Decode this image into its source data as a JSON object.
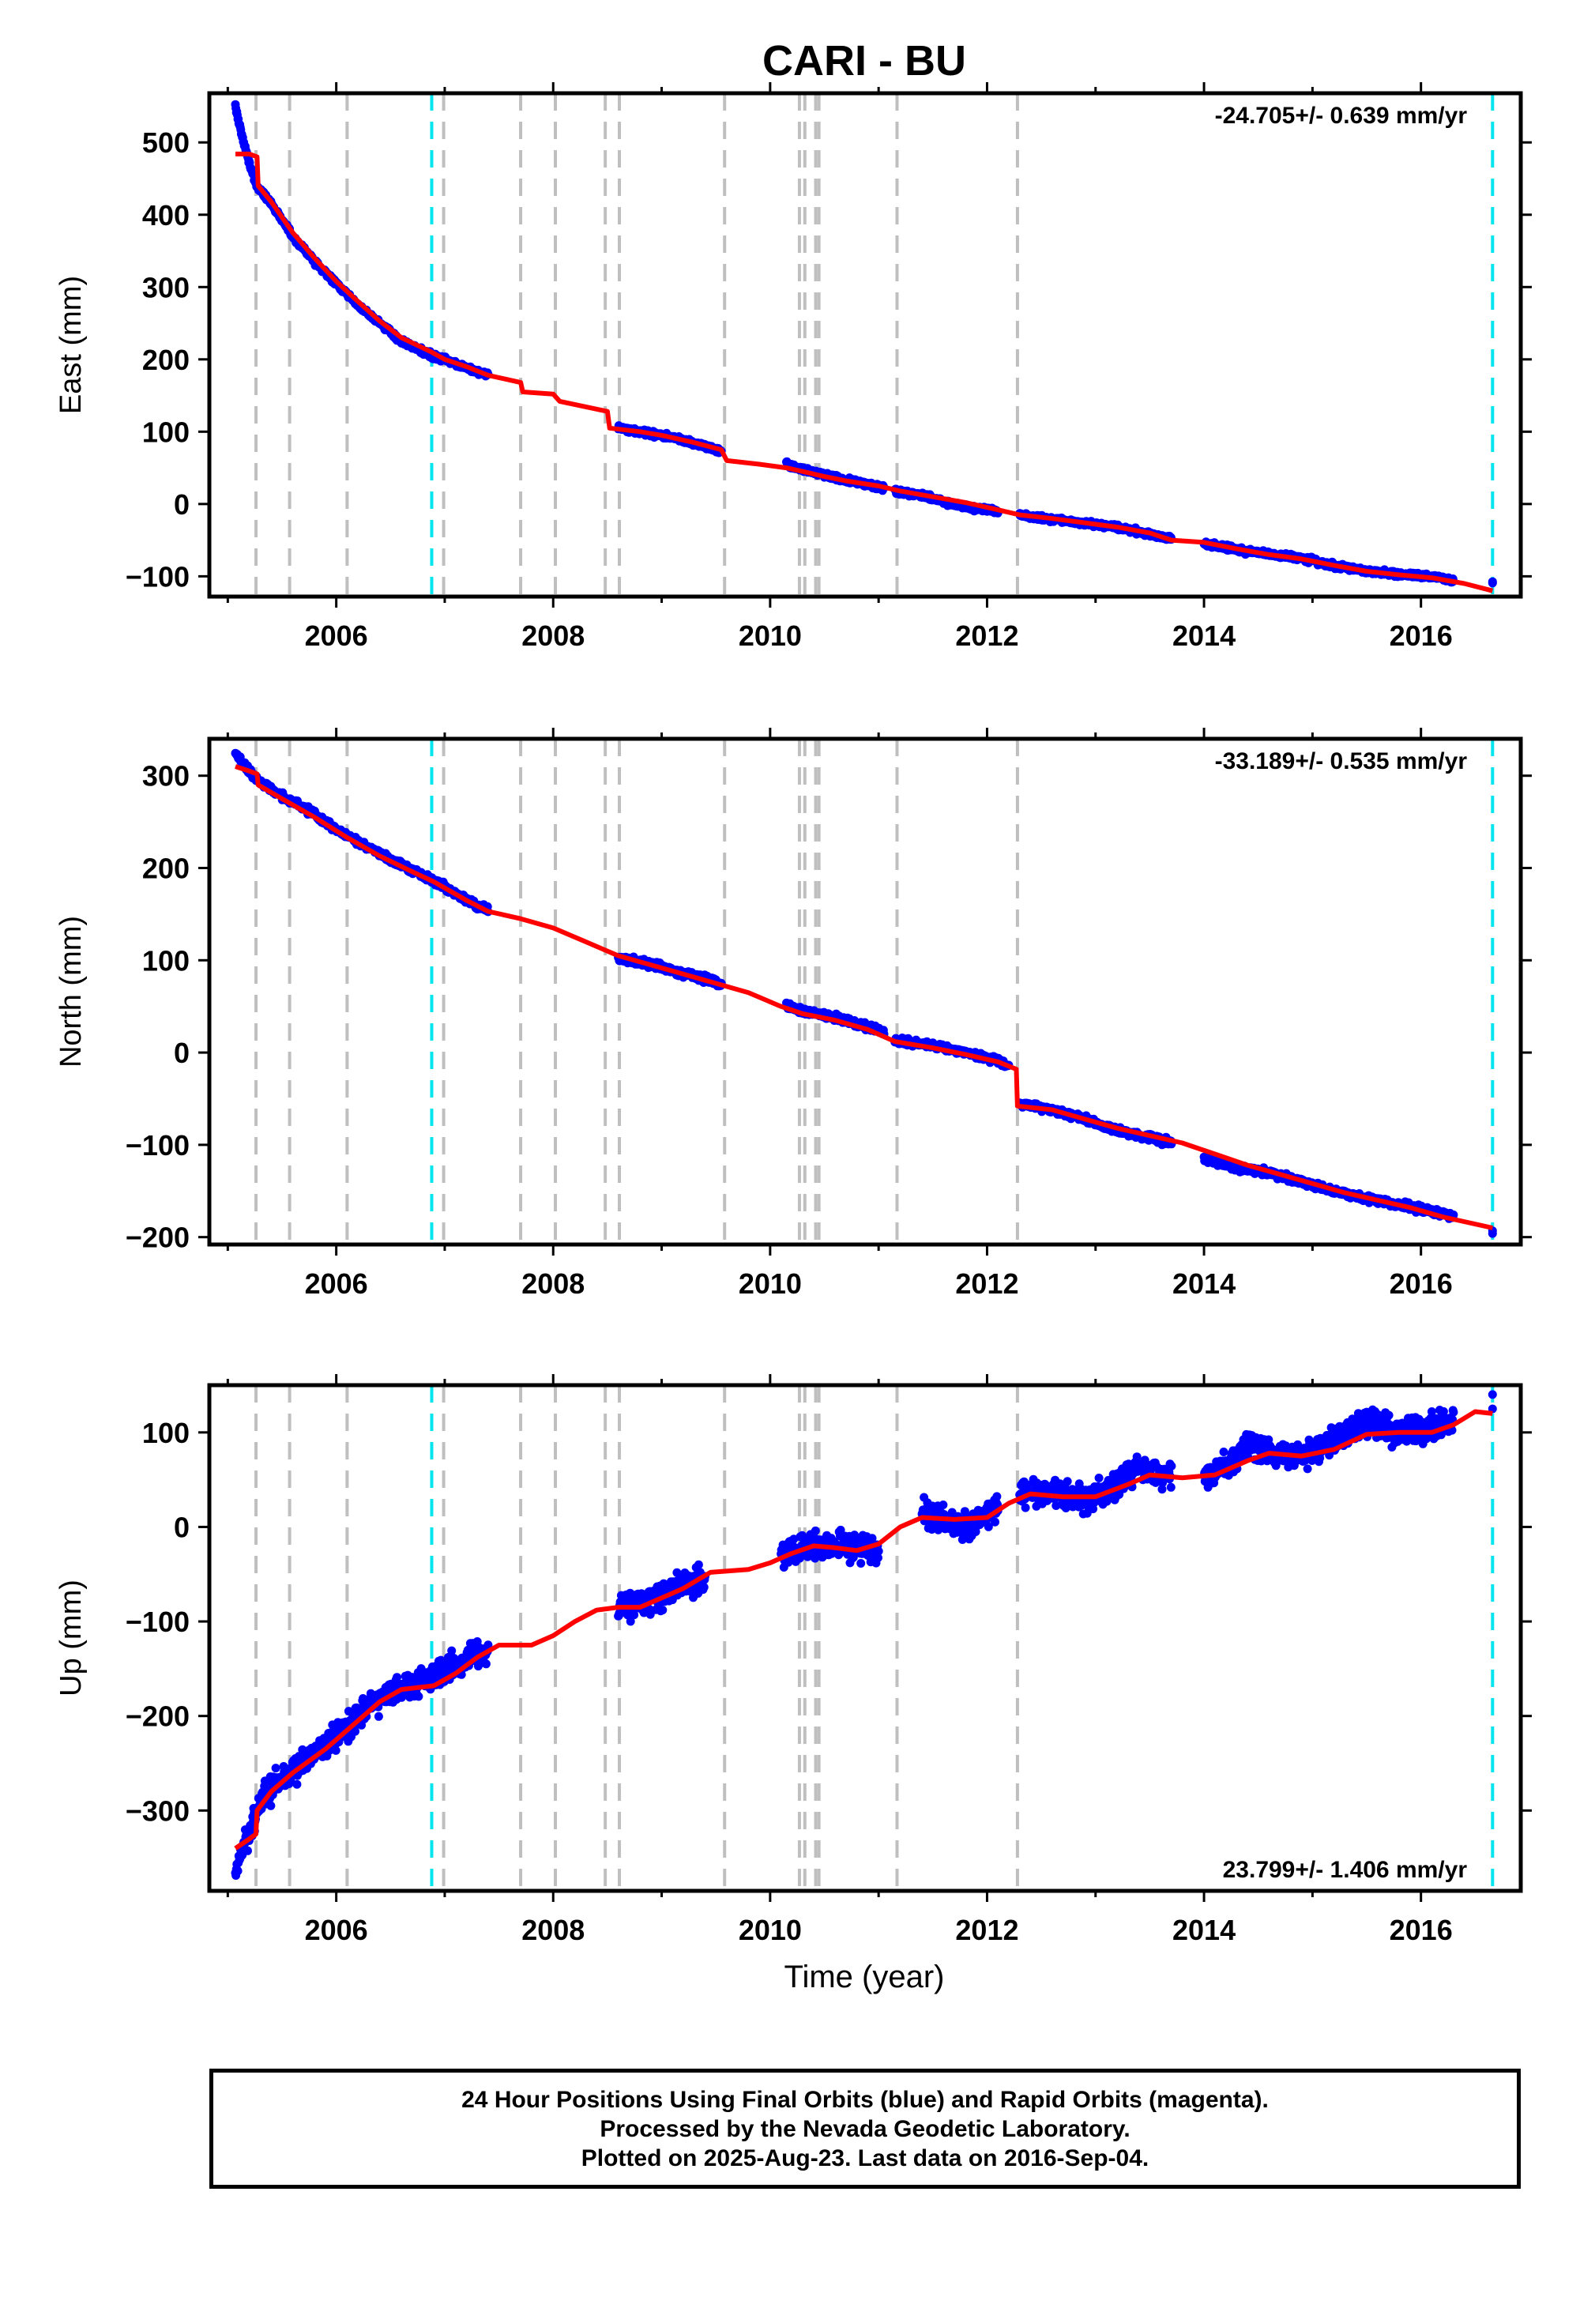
{
  "title": "CARI - BU",
  "xlabel": "Time (year)",
  "footer": {
    "line1": "24 Hour Positions Using Final Orbits (blue) and Rapid Orbits (magenta).",
    "line2": "Processed by the Nevada Geodetic Laboratory.",
    "line3": "Plotted on 2025-Aug-23. Last data on 2016-Sep-04."
  },
  "colors": {
    "data": "#0000ff",
    "model": "#ff0000",
    "event_gray": "#bfbfbf",
    "event_cyan": "#00e5ee"
  },
  "chart_data": [
    {
      "type": "scatter",
      "name": "east",
      "ylabel": "East (mm)",
      "rate_label": "-24.705+/- 0.639 mm/yr",
      "rate_position": "top-right",
      "xlim": [
        2004.83,
        2016.92
      ],
      "ylim": [
        -128,
        568
      ],
      "xticks": [
        2006,
        2008,
        2010,
        2012,
        2014,
        2016
      ],
      "yticks": [
        -100,
        0,
        100,
        200,
        300,
        400,
        500
      ],
      "data_segments": [
        [
          [
            2005.07,
            550
          ],
          [
            2005.13,
            510
          ],
          [
            2005.2,
            470
          ],
          [
            2005.27,
            440
          ],
          [
            2005.4,
            415
          ],
          [
            2005.6,
            370
          ],
          [
            2005.8,
            335
          ],
          [
            2006.0,
            305
          ],
          [
            2006.2,
            275
          ],
          [
            2006.4,
            250
          ],
          [
            2006.6,
            225
          ],
          [
            2006.8,
            210
          ],
          [
            2007.0,
            200
          ],
          [
            2007.2,
            188
          ],
          [
            2007.4,
            178
          ]
        ],
        [
          [
            2008.6,
            105
          ],
          [
            2008.8,
            100
          ],
          [
            2009.0,
            95
          ],
          [
            2009.2,
            88
          ],
          [
            2009.4,
            80
          ],
          [
            2009.55,
            72
          ]
        ],
        [
          [
            2010.15,
            55
          ],
          [
            2010.3,
            48
          ],
          [
            2010.5,
            40
          ],
          [
            2010.7,
            33
          ],
          [
            2010.9,
            27
          ],
          [
            2011.05,
            22
          ]
        ],
        [
          [
            2011.15,
            18
          ],
          [
            2011.4,
            12
          ],
          [
            2011.6,
            3
          ],
          [
            2011.85,
            -5
          ],
          [
            2012.1,
            -10
          ]
        ],
        [
          [
            2012.3,
            -15
          ],
          [
            2012.5,
            -20
          ],
          [
            2012.8,
            -25
          ],
          [
            2013.1,
            -30
          ],
          [
            2013.4,
            -38
          ],
          [
            2013.7,
            -48
          ]
        ],
        [
          [
            2014.0,
            -55
          ],
          [
            2014.3,
            -63
          ],
          [
            2014.6,
            -70
          ],
          [
            2014.9,
            -75
          ],
          [
            2015.2,
            -85
          ],
          [
            2015.5,
            -93
          ],
          [
            2015.8,
            -97
          ],
          [
            2016.1,
            -100
          ],
          [
            2016.3,
            -107
          ]
        ],
        [
          [
            2016.66,
            -110
          ]
        ]
      ],
      "model": [
        [
          2005.07,
          484
        ],
        [
          2005.2,
          484
        ],
        [
          2005.27,
          480
        ],
        [
          2005.28,
          440
        ],
        [
          2005.4,
          418
        ],
        [
          2005.6,
          375
        ],
        [
          2005.8,
          340
        ],
        [
          2006.0,
          308
        ],
        [
          2006.2,
          280
        ],
        [
          2006.4,
          253
        ],
        [
          2006.6,
          230
        ],
        [
          2006.88,
          210
        ],
        [
          2007.0,
          200
        ],
        [
          2007.2,
          190
        ],
        [
          2007.4,
          178
        ],
        [
          2007.7,
          168
        ],
        [
          2007.72,
          155
        ],
        [
          2008.0,
          152
        ],
        [
          2008.06,
          142
        ],
        [
          2008.5,
          128
        ],
        [
          2008.52,
          105
        ],
        [
          2008.8,
          100
        ],
        [
          2009.0,
          95
        ],
        [
          2009.3,
          85
        ],
        [
          2009.55,
          75
        ],
        [
          2009.6,
          60
        ],
        [
          2009.9,
          55
        ],
        [
          2010.15,
          50
        ],
        [
          2010.3,
          45
        ],
        [
          2010.5,
          38
        ],
        [
          2010.7,
          32
        ],
        [
          2011.0,
          25
        ],
        [
          2011.2,
          18
        ],
        [
          2011.5,
          10
        ],
        [
          2011.8,
          2
        ],
        [
          2012.1,
          -8
        ],
        [
          2012.3,
          -15
        ],
        [
          2012.6,
          -20
        ],
        [
          2012.9,
          -26
        ],
        [
          2013.2,
          -32
        ],
        [
          2013.5,
          -40
        ],
        [
          2013.7,
          -50
        ],
        [
          2014.0,
          -53
        ],
        [
          2014.3,
          -62
        ],
        [
          2014.6,
          -70
        ],
        [
          2014.9,
          -76
        ],
        [
          2015.2,
          -85
        ],
        [
          2015.5,
          -93
        ],
        [
          2015.8,
          -98
        ],
        [
          2016.1,
          -102
        ],
        [
          2016.4,
          -110
        ],
        [
          2016.66,
          -120
        ]
      ]
    },
    {
      "type": "scatter",
      "name": "north",
      "ylabel": "North (mm)",
      "rate_label": "-33.189+/- 0.535 mm/yr",
      "rate_position": "top-right",
      "xlim": [
        2004.83,
        2016.92
      ],
      "ylim": [
        -208,
        340
      ],
      "xticks": [
        2006,
        2008,
        2010,
        2012,
        2014,
        2016
      ],
      "yticks": [
        -200,
        -100,
        0,
        100,
        200,
        300
      ],
      "data_segments": [
        [
          [
            2005.07,
            325
          ],
          [
            2005.13,
            315
          ],
          [
            2005.27,
            295
          ],
          [
            2005.5,
            278
          ],
          [
            2005.8,
            258
          ],
          [
            2006.1,
            235
          ],
          [
            2006.4,
            215
          ],
          [
            2006.7,
            198
          ],
          [
            2007.0,
            180
          ],
          [
            2007.2,
            165
          ],
          [
            2007.4,
            155
          ]
        ],
        [
          [
            2008.6,
            103
          ],
          [
            2008.8,
            98
          ],
          [
            2009.0,
            92
          ],
          [
            2009.3,
            83
          ],
          [
            2009.55,
            75
          ]
        ],
        [
          [
            2010.15,
            52
          ],
          [
            2010.3,
            45
          ],
          [
            2010.6,
            38
          ],
          [
            2010.9,
            28
          ],
          [
            2011.05,
            22
          ]
        ],
        [
          [
            2011.15,
            12
          ],
          [
            2011.5,
            8
          ],
          [
            2011.8,
            0
          ],
          [
            2012.1,
            -8
          ],
          [
            2012.2,
            -15
          ]
        ],
        [
          [
            2012.3,
            -55
          ],
          [
            2012.6,
            -62
          ],
          [
            2012.9,
            -72
          ],
          [
            2013.2,
            -85
          ],
          [
            2013.5,
            -92
          ],
          [
            2013.7,
            -98
          ]
        ],
        [
          [
            2014.0,
            -115
          ],
          [
            2014.3,
            -125
          ],
          [
            2014.6,
            -130
          ],
          [
            2014.9,
            -140
          ],
          [
            2015.2,
            -150
          ],
          [
            2015.5,
            -158
          ],
          [
            2015.8,
            -165
          ],
          [
            2016.1,
            -172
          ],
          [
            2016.3,
            -178
          ]
        ],
        [
          [
            2016.66,
            -195
          ]
        ]
      ],
      "model": [
        [
          2005.07,
          310
        ],
        [
          2005.2,
          305
        ],
        [
          2005.27,
          302
        ],
        [
          2005.28,
          290
        ],
        [
          2005.5,
          275
        ],
        [
          2005.8,
          255
        ],
        [
          2006.1,
          233
        ],
        [
          2006.4,
          213
        ],
        [
          2006.7,
          196
        ],
        [
          2006.9,
          185
        ],
        [
          2007.2,
          165
        ],
        [
          2007.4,
          153
        ],
        [
          2007.7,
          145
        ],
        [
          2008.0,
          135
        ],
        [
          2008.3,
          120
        ],
        [
          2008.6,
          105
        ],
        [
          2008.9,
          95
        ],
        [
          2009.2,
          85
        ],
        [
          2009.5,
          75
        ],
        [
          2009.8,
          65
        ],
        [
          2010.1,
          50
        ],
        [
          2010.3,
          42
        ],
        [
          2010.6,
          35
        ],
        [
          2010.9,
          25
        ],
        [
          2011.15,
          12
        ],
        [
          2011.5,
          5
        ],
        [
          2011.8,
          -2
        ],
        [
          2012.1,
          -10
        ],
        [
          2012.27,
          -18
        ],
        [
          2012.28,
          -58
        ],
        [
          2012.6,
          -62
        ],
        [
          2012.9,
          -72
        ],
        [
          2013.2,
          -82
        ],
        [
          2013.5,
          -90
        ],
        [
          2013.8,
          -98
        ],
        [
          2014.1,
          -110
        ],
        [
          2014.4,
          -122
        ],
        [
          2014.7,
          -132
        ],
        [
          2015.0,
          -142
        ],
        [
          2015.3,
          -152
        ],
        [
          2015.6,
          -160
        ],
        [
          2015.9,
          -168
        ],
        [
          2016.2,
          -178
        ],
        [
          2016.66,
          -190
        ]
      ]
    },
    {
      "type": "scatter",
      "name": "up",
      "ylabel": "Up (mm)",
      "rate_label": "23.799+/- 1.406 mm/yr",
      "rate_position": "bottom-right",
      "xlim": [
        2004.83,
        2016.92
      ],
      "ylim": [
        -385,
        150
      ],
      "xticks": [
        2006,
        2008,
        2010,
        2012,
        2014,
        2016
      ],
      "yticks": [
        -300,
        -200,
        -100,
        0,
        100
      ],
      "data_segments": [
        [
          [
            2005.07,
            -365
          ],
          [
            2005.13,
            -340
          ],
          [
            2005.2,
            -320
          ],
          [
            2005.3,
            -290
          ],
          [
            2005.5,
            -265
          ],
          [
            2005.8,
            -240
          ],
          [
            2006.1,
            -210
          ],
          [
            2006.4,
            -180
          ],
          [
            2006.7,
            -165
          ],
          [
            2007.0,
            -155
          ],
          [
            2007.2,
            -140
          ],
          [
            2007.4,
            -128
          ]
        ],
        [
          [
            2008.6,
            -85
          ],
          [
            2008.8,
            -82
          ],
          [
            2009.0,
            -75
          ],
          [
            2009.2,
            -60
          ],
          [
            2009.4,
            -52
          ]
        ],
        [
          [
            2010.1,
            -30
          ],
          [
            2010.3,
            -22
          ],
          [
            2010.5,
            -18
          ],
          [
            2010.7,
            -20
          ],
          [
            2010.9,
            -22
          ],
          [
            2011.0,
            -25
          ]
        ],
        [
          [
            2011.4,
            12
          ],
          [
            2011.6,
            10
          ],
          [
            2011.8,
            0
          ],
          [
            2012.0,
            12
          ],
          [
            2012.1,
            20
          ]
        ],
        [
          [
            2012.3,
            38
          ],
          [
            2012.6,
            35
          ],
          [
            2012.9,
            30
          ],
          [
            2013.2,
            45
          ],
          [
            2013.4,
            65
          ],
          [
            2013.7,
            55
          ]
        ],
        [
          [
            2014.0,
            55
          ],
          [
            2014.2,
            65
          ],
          [
            2014.4,
            85
          ],
          [
            2014.7,
            75
          ],
          [
            2015.0,
            80
          ],
          [
            2015.3,
            100
          ],
          [
            2015.5,
            110
          ],
          [
            2015.8,
            100
          ],
          [
            2016.1,
            105
          ],
          [
            2016.3,
            115
          ]
        ],
        [
          [
            2016.66,
            130
          ]
        ]
      ],
      "model": [
        [
          2005.07,
          -340
        ],
        [
          2005.2,
          -330
        ],
        [
          2005.26,
          -325
        ],
        [
          2005.27,
          -300
        ],
        [
          2005.4,
          -280
        ],
        [
          2005.6,
          -260
        ],
        [
          2005.9,
          -235
        ],
        [
          2006.2,
          -205
        ],
        [
          2006.4,
          -185
        ],
        [
          2006.6,
          -172
        ],
        [
          2006.9,
          -168
        ],
        [
          2007.1,
          -155
        ],
        [
          2007.3,
          -138
        ],
        [
          2007.5,
          -125
        ],
        [
          2007.8,
          -125
        ],
        [
          2008.0,
          -115
        ],
        [
          2008.2,
          -100
        ],
        [
          2008.4,
          -88
        ],
        [
          2008.6,
          -85
        ],
        [
          2008.8,
          -85
        ],
        [
          2009.0,
          -75
        ],
        [
          2009.2,
          -65
        ],
        [
          2009.45,
          -48
        ],
        [
          2009.8,
          -45
        ],
        [
          2010.0,
          -38
        ],
        [
          2010.2,
          -28
        ],
        [
          2010.4,
          -20
        ],
        [
          2010.6,
          -22
        ],
        [
          2010.8,
          -25
        ],
        [
          2011.0,
          -18
        ],
        [
          2011.2,
          0
        ],
        [
          2011.4,
          10
        ],
        [
          2011.7,
          8
        ],
        [
          2012.0,
          10
        ],
        [
          2012.2,
          25
        ],
        [
          2012.4,
          35
        ],
        [
          2012.7,
          32
        ],
        [
          2013.0,
          32
        ],
        [
          2013.3,
          45
        ],
        [
          2013.5,
          55
        ],
        [
          2013.8,
          52
        ],
        [
          2014.1,
          55
        ],
        [
          2014.4,
          70
        ],
        [
          2014.6,
          78
        ],
        [
          2014.9,
          75
        ],
        [
          2015.2,
          82
        ],
        [
          2015.5,
          98
        ],
        [
          2015.8,
          100
        ],
        [
          2016.1,
          100
        ],
        [
          2016.3,
          108
        ],
        [
          2016.5,
          122
        ],
        [
          2016.66,
          120
        ]
      ]
    }
  ],
  "events": {
    "gray": [
      2005.26,
      2005.57,
      2006.1,
      2006.99,
      2007.7,
      2008.02,
      2008.48,
      2008.61,
      2009.58,
      2010.27,
      2010.32,
      2010.42,
      2010.45,
      2011.17,
      2012.28
    ],
    "cyan": [
      2006.88,
      2016.66
    ]
  }
}
